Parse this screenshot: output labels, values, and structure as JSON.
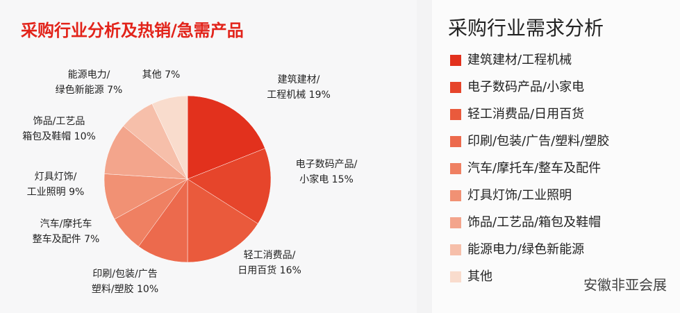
{
  "chart_data": {
    "type": "pie",
    "title": "采购行业分析及热销/急需产品",
    "legend_title": "采购行业需求分析",
    "categories": [
      "建筑建材/工程机械",
      "电子数码产品/小家电",
      "轻工消费品/日用百货",
      "印刷/包装/广告/塑料/塑胶",
      "汽车/摩托车/整车及配件",
      "灯具灯饰/工业照明",
      "饰品/工艺品/箱包及鞋帽",
      "能源电力/绿色新能源",
      "其他"
    ],
    "slice_labels": [
      [
        "建筑建材/",
        "工程机械"
      ],
      [
        "电子数码产品/",
        "小家电"
      ],
      [
        "轻工消费品/",
        "日用百货"
      ],
      [
        "印刷/包装/广告",
        "塑料/塑胶"
      ],
      [
        "汽车/摩托车",
        "整车及配件"
      ],
      [
        "灯具灯饰/",
        "工业照明"
      ],
      [
        "饰品/工艺品",
        "箱包及鞋帽"
      ],
      [
        "能源电力/",
        "绿色新能源"
      ],
      [
        "其他"
      ]
    ],
    "values": [
      19,
      15,
      16,
      10,
      7,
      9,
      10,
      7,
      7
    ],
    "value_labels": [
      "19%",
      "15%",
      "16%",
      "10%",
      "7%",
      "9%",
      "10%",
      "7%",
      "7%"
    ],
    "colors": [
      "#e2311d",
      "#e6452b",
      "#ea5a3c",
      "#ec6a4d",
      "#ef8062",
      "#f19174",
      "#f3a58c",
      "#f6bfaa",
      "#f9dccd"
    ],
    "watermark": "安徽非亚会展"
  }
}
